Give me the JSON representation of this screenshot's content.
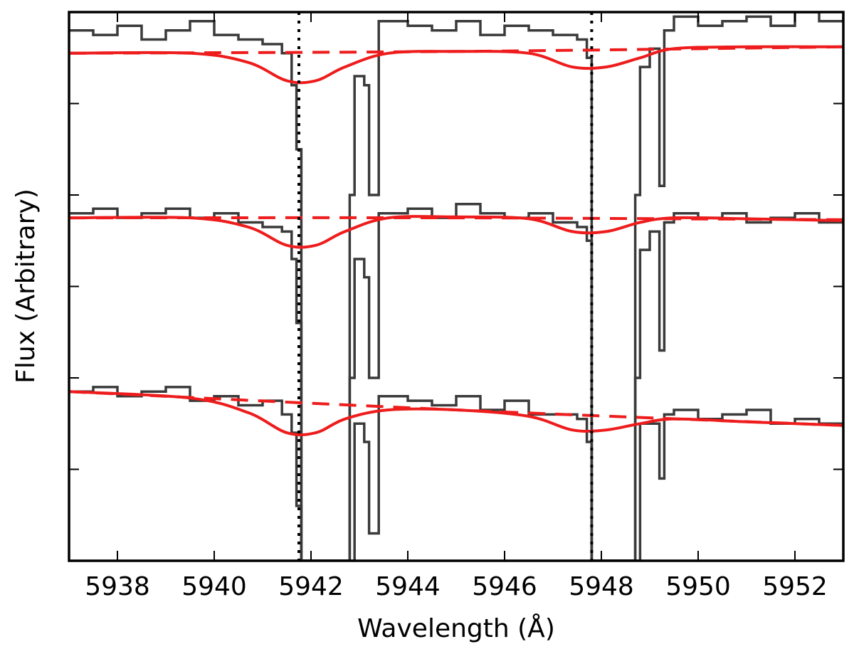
{
  "chart_data": {
    "type": "line",
    "title": "",
    "xlabel": "Wavelength (Å)",
    "ylabel": "Flux (Arbitrary)",
    "xlim": [
      5937.0,
      5953.0
    ],
    "ylim": [
      0.0,
      6.0
    ],
    "xticks": [
      5938,
      5940,
      5942,
      5944,
      5946,
      5948,
      5950,
      5952
    ],
    "xtick_labels": [
      "5938",
      "5940",
      "5942",
      "5944",
      "5946",
      "5948",
      "5950",
      "5952"
    ],
    "yticks": [
      1,
      2,
      3,
      4,
      5,
      6
    ],
    "show_ytick_labels": false,
    "grid": false,
    "reference_lines_x": [
      5941.75,
      5947.8
    ],
    "colors": {
      "observed": "#3a3a3a",
      "model": "#ee1c1c",
      "reference": "#000000"
    },
    "series": [
      {
        "kind": "observed",
        "offset": 5.8,
        "x": [
          5937.0,
          5937.5,
          5938.0,
          5938.5,
          5939.0,
          5939.5,
          5940.0,
          5940.5,
          5941.0,
          5941.4,
          5941.6,
          5941.7,
          5941.8,
          5942.8,
          5942.9,
          5943.1,
          5943.2,
          5943.4,
          5944.0,
          5944.5,
          5945.0,
          5945.5,
          5946.0,
          5946.5,
          5947.0,
          5947.5,
          5947.7,
          5947.8,
          5948.7,
          5948.8,
          5949.0,
          5949.2,
          5949.3,
          5949.5,
          5950.0,
          5950.5,
          5951.0,
          5951.5,
          5952.0,
          5952.5,
          5953.0
        ],
        "y": [
          5.8,
          5.75,
          5.85,
          5.7,
          5.8,
          5.9,
          5.75,
          5.7,
          5.65,
          5.55,
          5.2,
          4.5,
          0.0,
          4.0,
          5.3,
          5.2,
          4.0,
          5.9,
          5.85,
          5.8,
          5.9,
          5.75,
          5.85,
          5.8,
          5.75,
          5.7,
          5.5,
          0.0,
          4.0,
          5.4,
          5.6,
          4.1,
          5.8,
          5.95,
          5.85,
          5.9,
          5.95,
          5.85,
          6.0,
          5.9,
          5.95
        ]
      },
      {
        "kind": "observed",
        "offset": 3.8,
        "x": [
          5937.0,
          5937.5,
          5938.0,
          5938.5,
          5939.0,
          5939.5,
          5940.0,
          5940.5,
          5941.0,
          5941.4,
          5941.6,
          5941.7,
          5941.8,
          5942.8,
          5942.9,
          5943.1,
          5943.2,
          5943.4,
          5944.0,
          5944.5,
          5945.0,
          5945.5,
          5946.0,
          5946.5,
          5947.0,
          5947.5,
          5947.7,
          5947.8,
          5948.7,
          5948.8,
          5949.0,
          5949.2,
          5949.3,
          5949.5,
          5950.0,
          5950.5,
          5951.0,
          5951.5,
          5952.0,
          5952.5,
          5953.0
        ],
        "y": [
          3.8,
          3.85,
          3.75,
          3.8,
          3.85,
          3.75,
          3.8,
          3.7,
          3.65,
          3.6,
          3.3,
          2.6,
          0.0,
          2.0,
          3.3,
          3.1,
          2.0,
          3.8,
          3.85,
          3.75,
          3.9,
          3.8,
          3.75,
          3.8,
          3.7,
          3.65,
          3.5,
          0.0,
          2.0,
          3.4,
          3.6,
          2.3,
          3.7,
          3.8,
          3.75,
          3.8,
          3.7,
          3.75,
          3.8,
          3.7,
          3.75
        ]
      },
      {
        "kind": "observed",
        "offset": 1.8,
        "x": [
          5937.0,
          5937.5,
          5938.0,
          5938.5,
          5939.0,
          5939.5,
          5940.0,
          5940.5,
          5941.0,
          5941.4,
          5941.6,
          5941.7,
          5941.8,
          5942.8,
          5942.9,
          5943.1,
          5943.2,
          5943.4,
          5944.0,
          5944.5,
          5945.0,
          5945.5,
          5946.0,
          5946.5,
          5947.0,
          5947.5,
          5947.7,
          5947.8,
          5948.7,
          5948.8,
          5949.0,
          5949.2,
          5949.3,
          5949.5,
          5950.0,
          5950.5,
          5951.0,
          5951.5,
          5952.0,
          5952.5,
          5953.0
        ],
        "y": [
          1.85,
          1.9,
          1.8,
          1.85,
          1.9,
          1.75,
          1.8,
          1.7,
          1.75,
          1.6,
          1.4,
          0.6,
          0.0,
          0.0,
          1.5,
          1.3,
          0.3,
          1.8,
          1.75,
          1.7,
          1.8,
          1.65,
          1.75,
          1.6,
          1.6,
          1.55,
          1.3,
          0.0,
          0.0,
          1.5,
          1.5,
          0.9,
          1.6,
          1.65,
          1.55,
          1.6,
          1.65,
          1.5,
          1.55,
          1.5,
          1.45
        ]
      },
      {
        "kind": "model",
        "style": "solid",
        "x": [
          5937.0,
          5939.5,
          5940.7,
          5941.5,
          5942.1,
          5942.7,
          5943.6,
          5945.0,
          5946.5,
          5947.4,
          5948.1,
          5948.8,
          5949.5,
          5951.0,
          5953.0
        ],
        "y": [
          5.55,
          5.55,
          5.45,
          5.25,
          5.25,
          5.4,
          5.55,
          5.57,
          5.55,
          5.4,
          5.4,
          5.5,
          5.6,
          5.62,
          5.62
        ]
      },
      {
        "kind": "model",
        "style": "dashed",
        "x": [
          5937.0,
          5945.0,
          5953.0
        ],
        "y": [
          5.55,
          5.57,
          5.62
        ]
      },
      {
        "kind": "model",
        "style": "solid",
        "x": [
          5937.0,
          5939.5,
          5940.7,
          5941.5,
          5942.1,
          5942.7,
          5943.6,
          5945.0,
          5946.5,
          5947.4,
          5948.1,
          5948.8,
          5949.5,
          5951.0,
          5953.0
        ],
        "y": [
          3.75,
          3.75,
          3.65,
          3.45,
          3.45,
          3.6,
          3.75,
          3.76,
          3.74,
          3.6,
          3.6,
          3.7,
          3.75,
          3.74,
          3.72
        ]
      },
      {
        "kind": "model",
        "style": "dashed",
        "x": [
          5937.0,
          5945.0,
          5953.0
        ],
        "y": [
          3.75,
          3.75,
          3.73
        ]
      },
      {
        "kind": "model",
        "style": "solid",
        "x": [
          5937.0,
          5939.5,
          5940.7,
          5941.5,
          5942.1,
          5942.7,
          5943.6,
          5945.0,
          5946.5,
          5947.4,
          5948.1,
          5948.8,
          5949.5,
          5951.0,
          5953.0
        ],
        "y": [
          1.85,
          1.78,
          1.62,
          1.4,
          1.4,
          1.55,
          1.65,
          1.65,
          1.58,
          1.43,
          1.43,
          1.5,
          1.55,
          1.52,
          1.48
        ]
      },
      {
        "kind": "model",
        "style": "dashed",
        "x": [
          5937.0,
          5945.0,
          5953.0
        ],
        "y": [
          1.85,
          1.65,
          1.48
        ]
      }
    ]
  }
}
